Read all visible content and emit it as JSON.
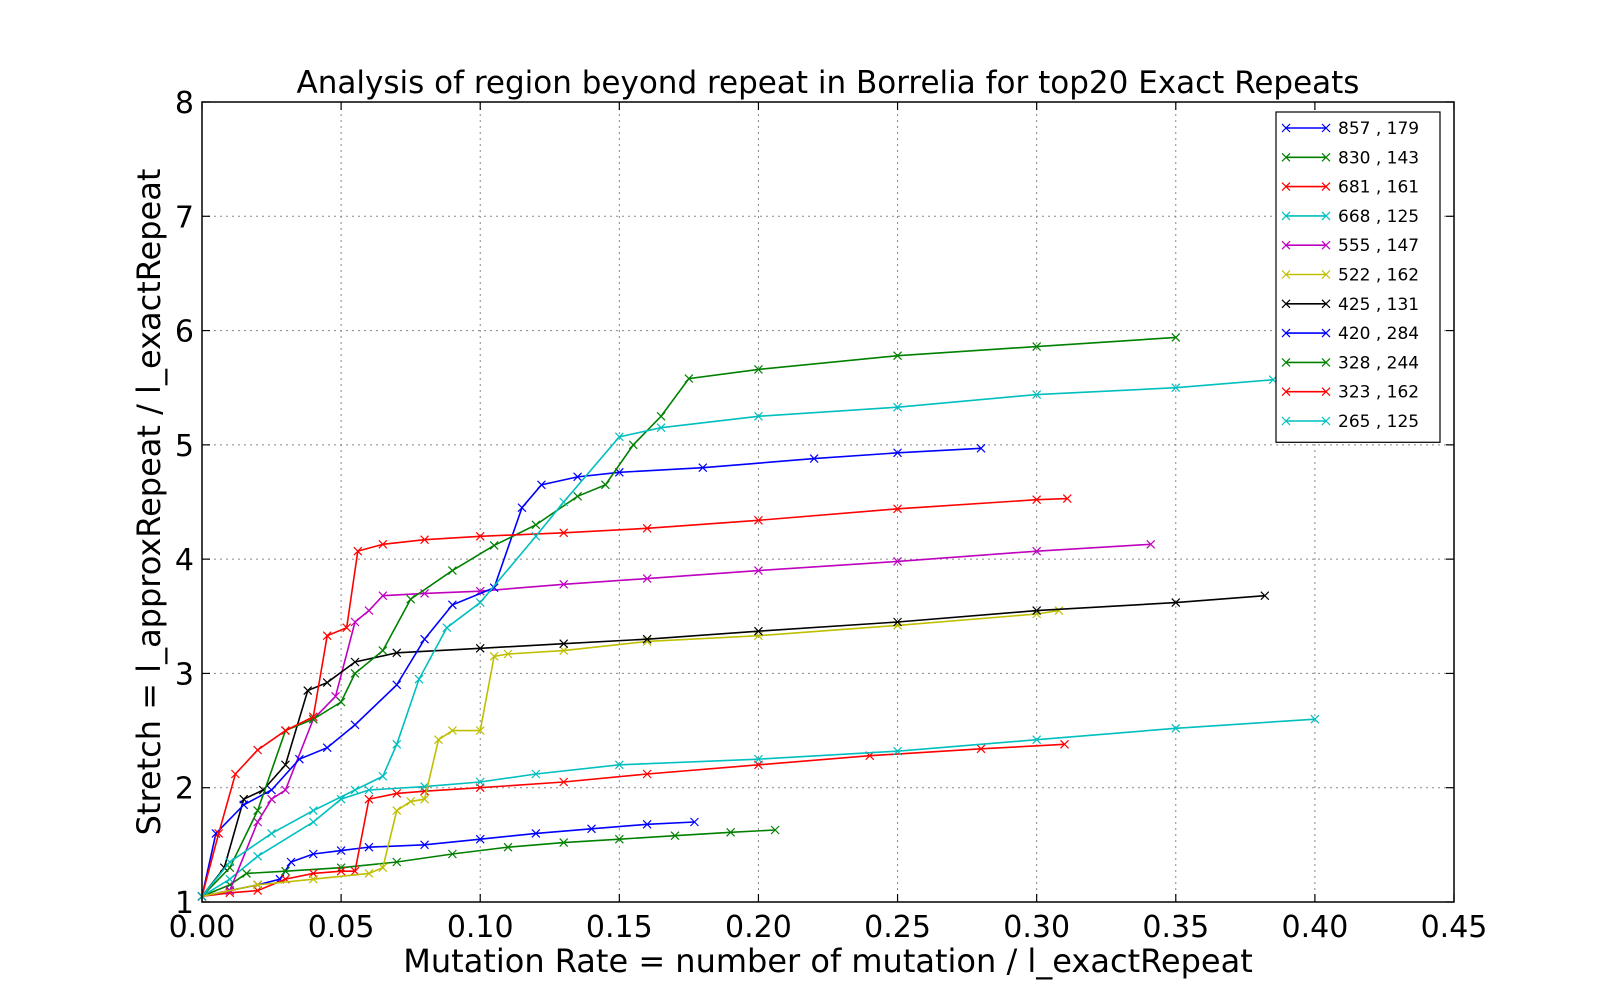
{
  "chart_data": {
    "type": "line",
    "title": "Analysis of region beyond repeat in Borrelia for top20 Exact Repeats",
    "xlabel": "Mutation Rate = number of mutation / l_exactRepeat",
    "ylabel": "Stretch =  l_approxRepeat / l_exactRepeat",
    "xlim": [
      0,
      0.45
    ],
    "ylim": [
      1,
      8
    ],
    "xticks": [
      "0.00",
      "0.05",
      "0.10",
      "0.15",
      "0.20",
      "0.25",
      "0.30",
      "0.35",
      "0.40",
      "0.45"
    ],
    "yticks": [
      "1",
      "2",
      "3",
      "4",
      "5",
      "6",
      "7",
      "8"
    ],
    "grid": true,
    "legend_position": "top-right",
    "marker": "x",
    "series": [
      {
        "name": "857 , 179",
        "color": "#0000ff",
        "x": [
          0,
          0.01,
          0.02,
          0.028,
          0.032,
          0.04,
          0.05,
          0.06,
          0.08,
          0.1,
          0.12,
          0.14,
          0.16,
          0.177
        ],
        "y": [
          1.05,
          1.1,
          1.15,
          1.2,
          1.35,
          1.42,
          1.45,
          1.48,
          1.5,
          1.55,
          1.6,
          1.64,
          1.68,
          1.7
        ]
      },
      {
        "name": "830 , 143",
        "color": "#008000",
        "x": [
          0,
          0.01,
          0.016,
          0.03,
          0.05,
          0.07,
          0.09,
          0.11,
          0.13,
          0.15,
          0.17,
          0.19,
          0.206
        ],
        "y": [
          1.05,
          1.15,
          1.25,
          1.27,
          1.3,
          1.35,
          1.42,
          1.48,
          1.52,
          1.55,
          1.58,
          1.61,
          1.63
        ]
      },
      {
        "name": "681 , 161",
        "color": "#ff0000",
        "x": [
          0,
          0.01,
          0.02,
          0.03,
          0.04,
          0.05,
          0.055,
          0.06,
          0.07,
          0.08,
          0.1,
          0.13,
          0.16,
          0.2,
          0.24,
          0.28,
          0.31
        ],
        "y": [
          1.05,
          1.08,
          1.1,
          1.2,
          1.25,
          1.27,
          1.27,
          1.9,
          1.95,
          1.97,
          2.0,
          2.05,
          2.12,
          2.2,
          2.28,
          2.34,
          2.38
        ]
      },
      {
        "name": "668 , 125",
        "color": "#00bfbf",
        "x": [
          0,
          0.01,
          0.02,
          0.04,
          0.05,
          0.06,
          0.08,
          0.1,
          0.12,
          0.15,
          0.2,
          0.25,
          0.3,
          0.35,
          0.4
        ],
        "y": [
          1.05,
          1.2,
          1.4,
          1.7,
          1.9,
          1.98,
          2.01,
          2.05,
          2.12,
          2.2,
          2.25,
          2.32,
          2.42,
          2.52,
          2.6
        ]
      },
      {
        "name": "555 , 147",
        "color": "#bf00bf",
        "x": [
          0,
          0.01,
          0.02,
          0.025,
          0.03,
          0.04,
          0.048,
          0.055,
          0.06,
          0.065,
          0.08,
          0.1,
          0.13,
          0.16,
          0.2,
          0.25,
          0.3,
          0.341
        ],
        "y": [
          1.05,
          1.1,
          1.7,
          1.9,
          1.98,
          2.6,
          2.8,
          3.45,
          3.55,
          3.68,
          3.7,
          3.72,
          3.78,
          3.83,
          3.9,
          3.98,
          4.07,
          4.13
        ]
      },
      {
        "name": "522 , 162",
        "color": "#bfbf00",
        "x": [
          0,
          0.02,
          0.04,
          0.06,
          0.065,
          0.07,
          0.075,
          0.08,
          0.085,
          0.09,
          0.1,
          0.105,
          0.11,
          0.13,
          0.16,
          0.2,
          0.25,
          0.3,
          0.308
        ],
        "y": [
          1.05,
          1.15,
          1.2,
          1.25,
          1.3,
          1.8,
          1.88,
          1.9,
          2.42,
          2.5,
          2.5,
          3.15,
          3.17,
          3.2,
          3.28,
          3.33,
          3.42,
          3.52,
          3.55
        ]
      },
      {
        "name": "425 , 131",
        "color": "#000000",
        "x": [
          0,
          0.008,
          0.015,
          0.022,
          0.03,
          0.038,
          0.045,
          0.055,
          0.07,
          0.1,
          0.13,
          0.16,
          0.2,
          0.25,
          0.3,
          0.35,
          0.382
        ],
        "y": [
          1.05,
          1.3,
          1.9,
          1.98,
          2.2,
          2.85,
          2.92,
          3.1,
          3.18,
          3.22,
          3.26,
          3.3,
          3.37,
          3.45,
          3.55,
          3.62,
          3.68
        ]
      },
      {
        "name": "420 , 284",
        "color": "#0000ff",
        "x": [
          0,
          0.005,
          0.015,
          0.025,
          0.035,
          0.045,
          0.055,
          0.07,
          0.08,
          0.09,
          0.105,
          0.115,
          0.122,
          0.135,
          0.15,
          0.18,
          0.22,
          0.25,
          0.28
        ],
        "y": [
          1.05,
          1.6,
          1.85,
          1.98,
          2.25,
          2.35,
          2.55,
          2.9,
          3.3,
          3.6,
          3.75,
          4.45,
          4.65,
          4.72,
          4.76,
          4.8,
          4.88,
          4.93,
          4.97
        ]
      },
      {
        "name": "328 , 244",
        "color": "#008000",
        "x": [
          0,
          0.01,
          0.02,
          0.03,
          0.04,
          0.05,
          0.055,
          0.065,
          0.075,
          0.09,
          0.105,
          0.12,
          0.135,
          0.145,
          0.155,
          0.165,
          0.175,
          0.2,
          0.25,
          0.3,
          0.35
        ],
        "y": [
          1.05,
          1.3,
          1.8,
          2.5,
          2.6,
          2.75,
          3.0,
          3.2,
          3.65,
          3.9,
          4.12,
          4.3,
          4.55,
          4.65,
          5.0,
          5.25,
          5.58,
          5.66,
          5.78,
          5.86,
          5.94
        ]
      },
      {
        "name": "323 , 162",
        "color": "#ff0000",
        "x": [
          0,
          0.006,
          0.012,
          0.02,
          0.03,
          0.04,
          0.045,
          0.052,
          0.056,
          0.065,
          0.08,
          0.1,
          0.13,
          0.16,
          0.2,
          0.25,
          0.3,
          0.311
        ],
        "y": [
          1.05,
          1.6,
          2.12,
          2.33,
          2.5,
          2.62,
          3.33,
          3.4,
          4.07,
          4.13,
          4.17,
          4.2,
          4.23,
          4.27,
          4.34,
          4.44,
          4.52,
          4.53
        ]
      },
      {
        "name": "265 , 125",
        "color": "#00bfbf",
        "x": [
          0,
          0.01,
          0.025,
          0.04,
          0.055,
          0.065,
          0.07,
          0.078,
          0.088,
          0.1,
          0.12,
          0.13,
          0.15,
          0.165,
          0.2,
          0.25,
          0.3,
          0.35,
          0.385
        ],
        "y": [
          1.05,
          1.35,
          1.6,
          1.8,
          1.98,
          2.1,
          2.38,
          2.95,
          3.4,
          3.62,
          4.2,
          4.5,
          5.07,
          5.15,
          5.25,
          5.33,
          5.44,
          5.5,
          5.57
        ]
      }
    ]
  }
}
